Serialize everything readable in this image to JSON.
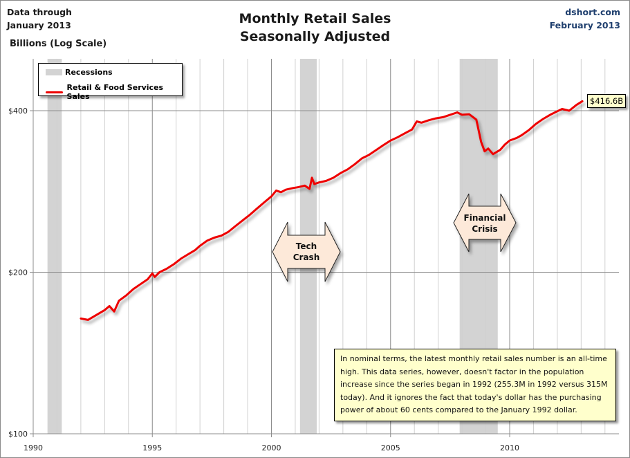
{
  "header": {
    "data_through_line1": "Data through",
    "data_through_line2": "January 2013",
    "units": "Billions (Log Scale)",
    "title_line1": "Monthly Retail Sales",
    "title_line2": "Seasonally Adjusted",
    "source_line1": "dshort.com",
    "source_line2": "February 2013"
  },
  "legend": {
    "recessions": "Recessions",
    "series": "Retail & Food Services Sales"
  },
  "annotations": {
    "last_value": "$416.6B",
    "tech_crash_line1": "Tech",
    "tech_crash_line2": "Crash",
    "financial_crisis_line1": "Financial",
    "financial_crisis_line2": "Crisis",
    "note": "In nominal terms, the latest monthly retail sales number is an all-time  high. This data series, however, doesn't factor in the population increase since the series began in 1992 (255.3M  in 1992  versus 315M  today). And it ignores the fact that today's dollar has the purchasing power of about 60 cents compared to the January 1992  dollar."
  },
  "colors": {
    "series": "#ee0000",
    "recession": "#d3d3d3",
    "callout_bg": "#ffffcc",
    "arrow_fill": "#fde9d9",
    "source_text": "#1f3f6e"
  },
  "chart_data": {
    "type": "line",
    "title": "Monthly Retail Sales Seasonally Adjusted",
    "xlabel": "",
    "ylabel": "Billions (Log Scale)",
    "yscale": "log",
    "xlim": [
      1990,
      2014.5
    ],
    "ylim": [
      100,
      450
    ],
    "xticks": [
      1990,
      1995,
      2000,
      2005,
      2010
    ],
    "xtick_labels": [
      "1990",
      "1995",
      "2000",
      "2005",
      "2010"
    ],
    "yticks": [
      100,
      200,
      400
    ],
    "ytick_labels": [
      "$100",
      "$200",
      "$400"
    ],
    "grid": true,
    "legend_position": "top-left",
    "recessions": [
      {
        "start": 1990.6,
        "end": 1991.2
      },
      {
        "start": 2001.2,
        "end": 2001.9
      },
      {
        "start": 2007.9,
        "end": 2009.5
      }
    ],
    "series": [
      {
        "name": "Retail & Food Services Sales",
        "x": [
          1992.0,
          1992.3,
          1992.6,
          1993.0,
          1993.2,
          1993.4,
          1993.6,
          1993.9,
          1994.2,
          1994.5,
          1994.8,
          1995.0,
          1995.1,
          1995.3,
          1995.6,
          1995.9,
          1996.2,
          1996.5,
          1996.8,
          1997.0,
          1997.3,
          1997.6,
          1997.9,
          1998.2,
          1998.5,
          1998.8,
          1999.1,
          1999.4,
          1999.7,
          2000.0,
          2000.2,
          2000.4,
          2000.6,
          2000.9,
          2001.1,
          2001.4,
          2001.6,
          2001.7,
          2001.8,
          2002.0,
          2002.3,
          2002.6,
          2002.9,
          2003.2,
          2003.5,
          2003.8,
          2004.1,
          2004.4,
          2004.7,
          2005.0,
          2005.3,
          2005.6,
          2005.9,
          2006.1,
          2006.3,
          2006.6,
          2006.9,
          2007.2,
          2007.5,
          2007.8,
          2008.0,
          2008.3,
          2008.6,
          2008.8,
          2008.95,
          2009.1,
          2009.3,
          2009.6,
          2009.8,
          2010.0,
          2010.3,
          2010.5,
          2010.8,
          2011.1,
          2011.4,
          2011.7,
          2012.0,
          2012.2,
          2012.5,
          2012.8,
          2013.05
        ],
        "values": [
          164,
          163,
          166,
          170,
          173,
          169,
          177,
          181,
          186,
          190,
          194,
          199,
          196,
          200,
          203,
          207,
          212,
          216,
          220,
          224,
          229,
          232,
          234,
          238,
          244,
          250,
          256,
          263,
          270,
          277,
          284,
          282,
          285,
          287,
          288,
          290,
          286,
          300,
          292,
          294,
          296,
          300,
          306,
          311,
          318,
          326,
          331,
          338,
          345,
          352,
          357,
          363,
          369,
          382,
          380,
          384,
          387,
          389,
          393,
          397,
          393,
          394,
          385,
          350,
          336,
          340,
          332,
          338,
          346,
          352,
          356,
          360,
          368,
          378,
          386,
          393,
          399,
          403,
          400,
          410,
          416.6
        ]
      }
    ]
  }
}
